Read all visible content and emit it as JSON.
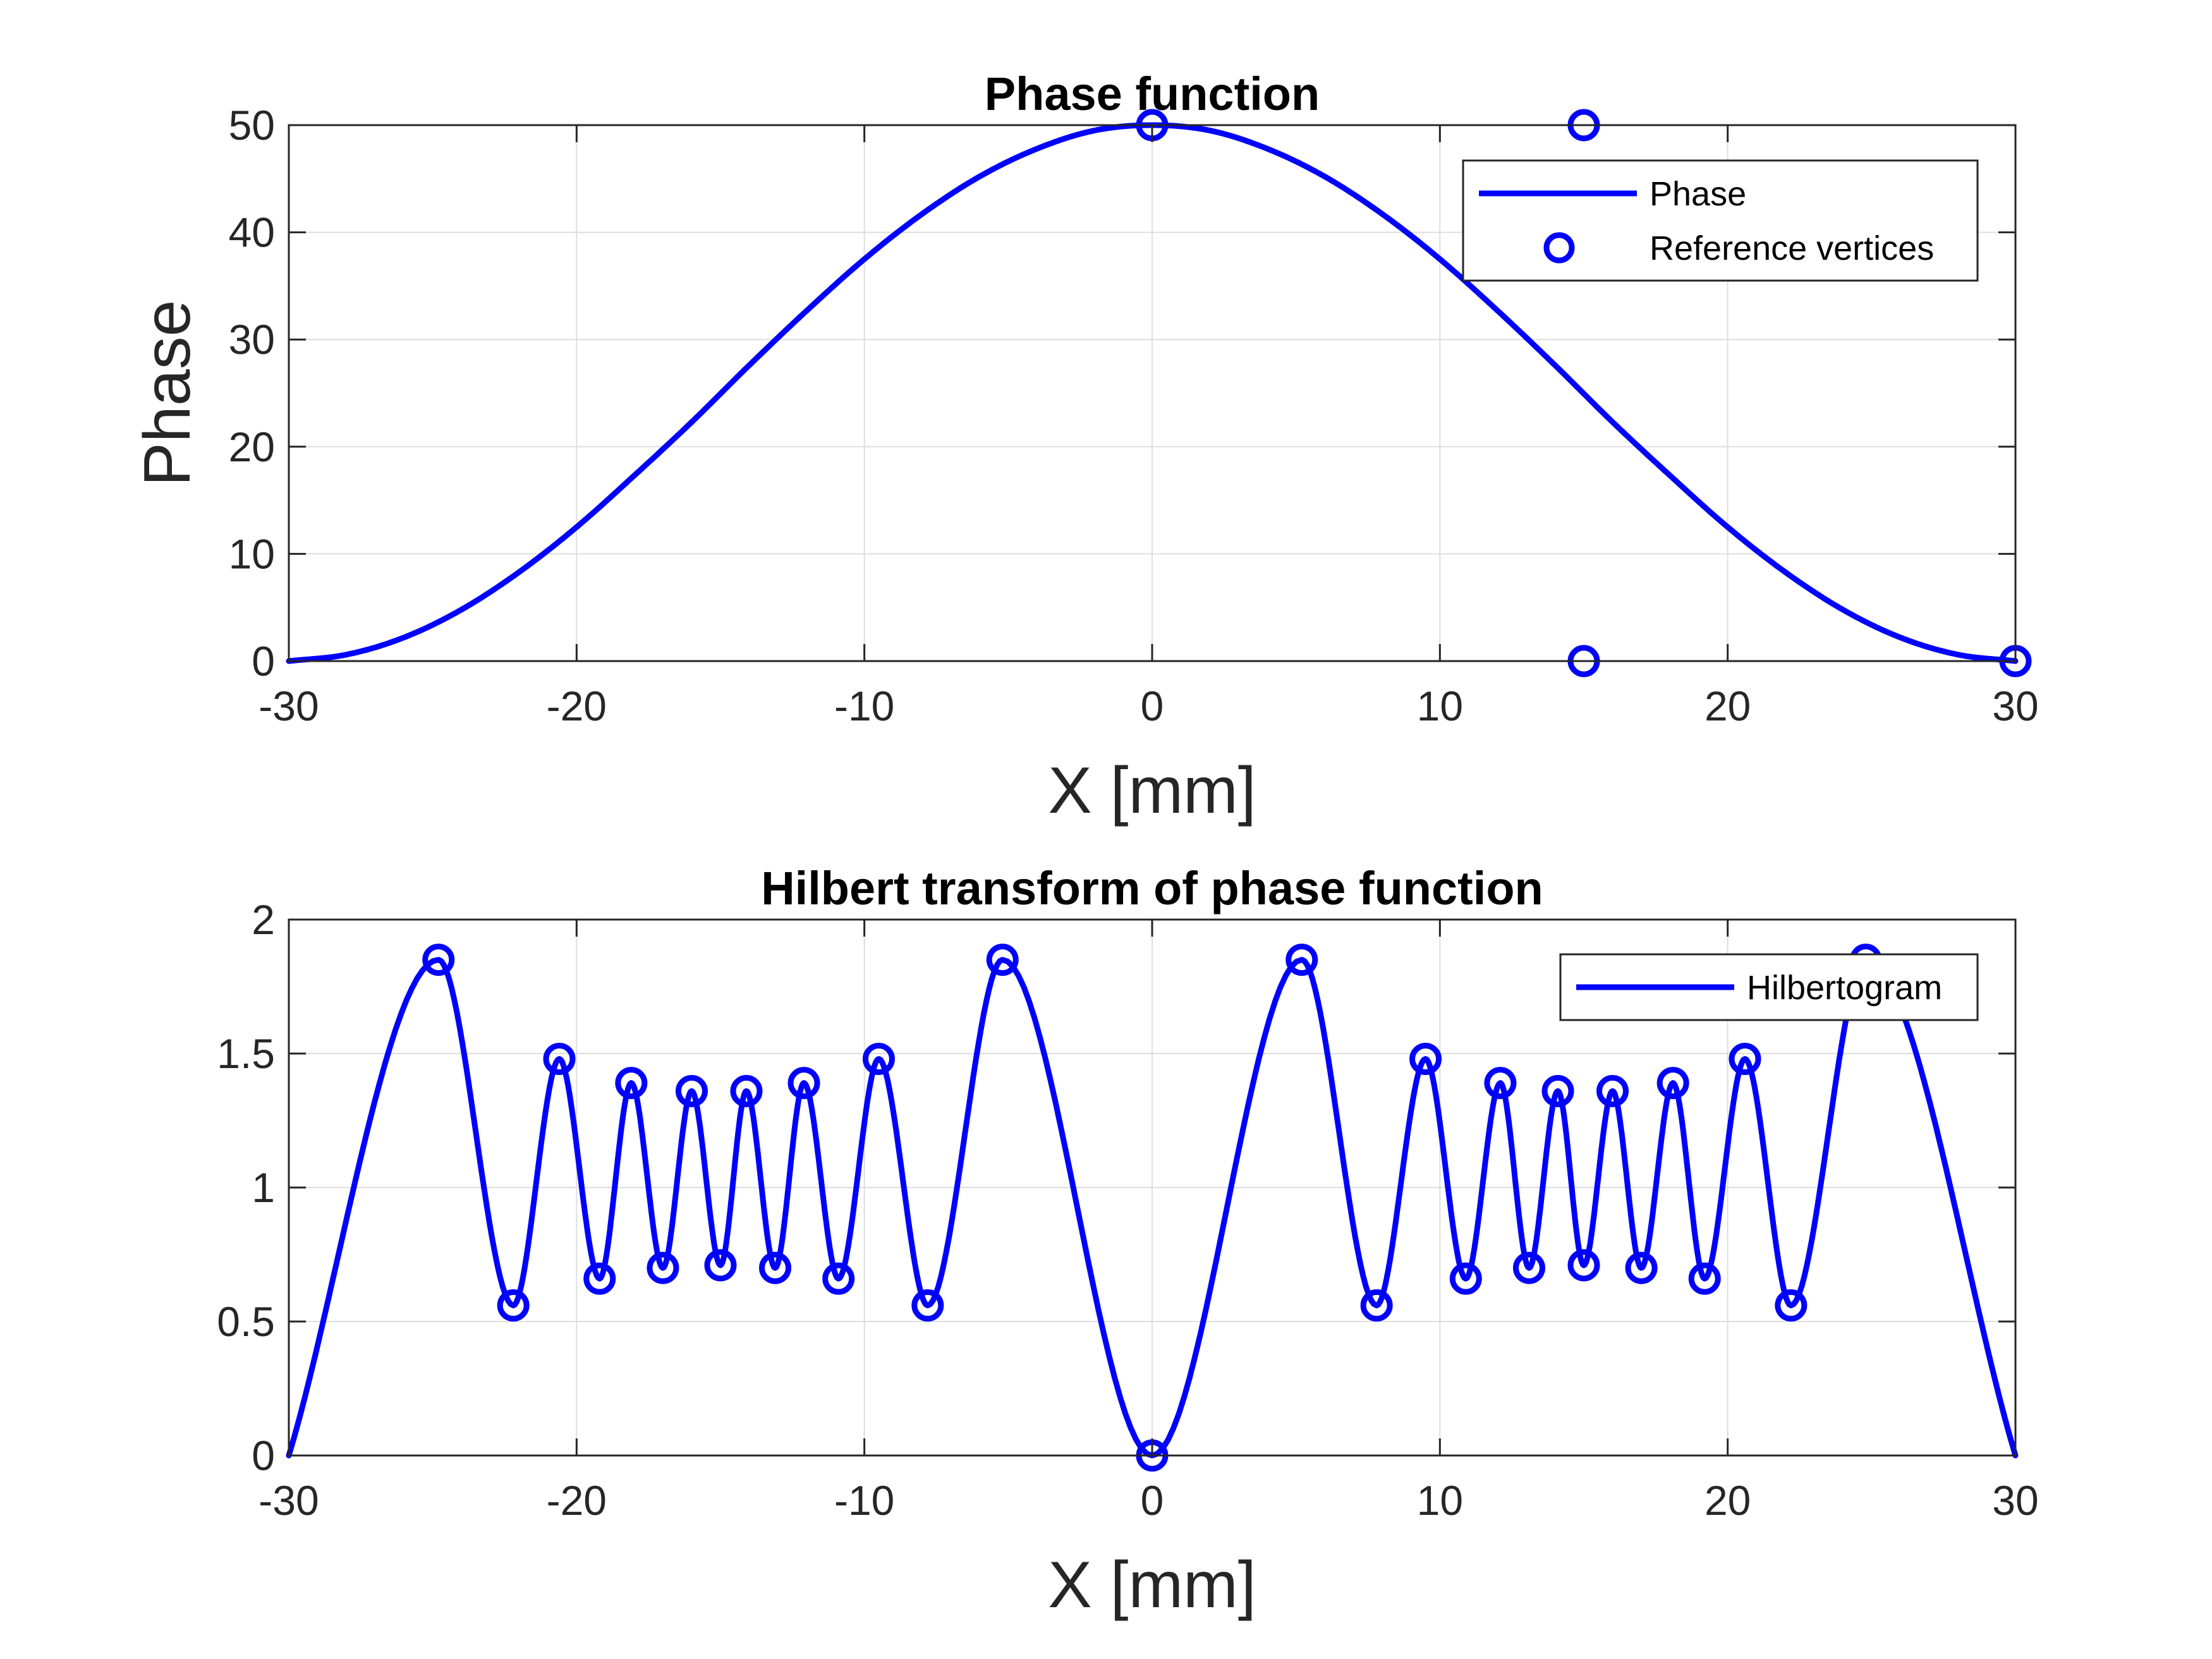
{
  "chart_data": [
    {
      "type": "line",
      "title": "Phase function",
      "xlabel": "X [mm]",
      "ylabel": "Phase",
      "xlim": [
        -30,
        30
      ],
      "ylim": [
        0,
        50
      ],
      "xticks": [
        "-30",
        "-20",
        "-10",
        "0",
        "10",
        "20",
        "30"
      ],
      "yticks": [
        "0",
        "10",
        "20",
        "30",
        "40",
        "50"
      ],
      "grid": true,
      "legend_position": "top-right",
      "color": "#0000ff",
      "series": [
        {
          "name": "Phase",
          "kind": "line",
          "x": [
            -30,
            -28,
            -26,
            -24,
            -22,
            -20,
            -18,
            -16,
            -14,
            -12,
            -10,
            -8,
            -6,
            -4,
            -2,
            0,
            2,
            4,
            6,
            8,
            10,
            12,
            14,
            16,
            18,
            20,
            22,
            24,
            26,
            28,
            30
          ],
          "y": [
            0,
            0.6,
            2.2,
            4.8,
            8.3,
            12.5,
            17.3,
            22.3,
            27.6,
            32.7,
            37.5,
            41.7,
            45.2,
            47.8,
            49.5,
            50,
            49.5,
            47.8,
            45.2,
            41.7,
            37.5,
            32.7,
            27.6,
            22.3,
            17.3,
            12.5,
            8.3,
            4.8,
            2.2,
            0.6,
            0
          ]
        },
        {
          "name": "Reference vertices",
          "kind": "markers",
          "x": [
            0,
            15,
            15,
            30
          ],
          "y": [
            50,
            50,
            0,
            0
          ]
        }
      ]
    },
    {
      "type": "line",
      "title": "Hilbert transform of phase function",
      "xlabel": "X [mm]",
      "ylabel": "",
      "xlim": [
        -30,
        30
      ],
      "ylim": [
        0,
        2
      ],
      "xticks": [
        "-30",
        "-20",
        "-10",
        "0",
        "10",
        "20",
        "30"
      ],
      "yticks": [
        "0",
        "0.5",
        "1",
        "1.5",
        "2"
      ],
      "grid": true,
      "legend_position": "top-right",
      "color": "#0000ff",
      "series": [
        {
          "name": "Hilbertogram",
          "kind": "line",
          "x": [
            -30,
            -24.8,
            -22.2,
            -20.6,
            -19.2,
            -18.1,
            -17.0,
            -16.0,
            -15.0,
            -14.1,
            -13.1,
            -12.1,
            -10.9,
            -9.5,
            -7.8,
            -5.2,
            0,
            5.2,
            7.8,
            9.5,
            10.9,
            12.1,
            13.1,
            14.1,
            15.0,
            16.0,
            17.0,
            18.1,
            19.2,
            20.6,
            22.2,
            24.8,
            30
          ],
          "y": [
            0,
            1.85,
            0.56,
            1.48,
            0.66,
            1.39,
            0.7,
            1.36,
            0.71,
            1.36,
            0.7,
            1.39,
            0.66,
            1.48,
            0.56,
            1.85,
            0,
            1.85,
            0.56,
            1.48,
            0.66,
            1.39,
            0.7,
            1.36,
            0.71,
            1.36,
            0.7,
            1.39,
            0.66,
            1.48,
            0.56,
            1.85,
            0
          ]
        },
        {
          "kind": "markers",
          "x": [
            -24.8,
            -22.2,
            -20.6,
            -19.2,
            -18.1,
            -17.0,
            -16.0,
            -15.0,
            -14.1,
            -13.1,
            -12.1,
            -10.9,
            -9.5,
            -7.8,
            -5.2,
            0,
            5.2,
            7.8,
            9.5,
            10.9,
            12.1,
            13.1,
            14.1,
            15.0,
            16.0,
            17.0,
            18.1,
            19.2,
            20.6,
            22.2,
            24.8
          ],
          "y": [
            1.85,
            0.56,
            1.48,
            0.66,
            1.39,
            0.7,
            1.36,
            0.71,
            1.36,
            0.7,
            1.39,
            0.66,
            1.48,
            0.56,
            1.85,
            0,
            1.85,
            0.56,
            1.48,
            0.66,
            1.39,
            0.7,
            1.36,
            0.71,
            1.36,
            0.7,
            1.39,
            0.66,
            1.48,
            0.56,
            1.85
          ]
        }
      ]
    }
  ]
}
